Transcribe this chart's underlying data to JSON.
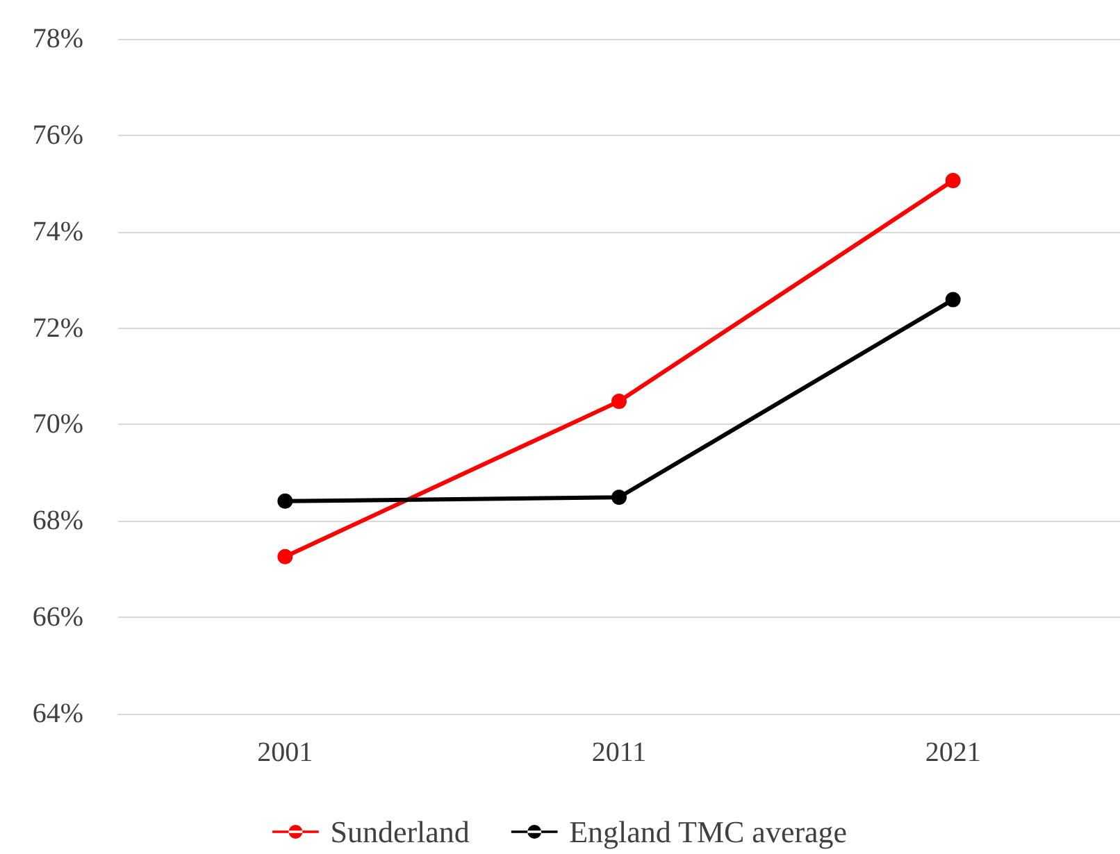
{
  "chart_data": {
    "type": "line",
    "categories": [
      "2001",
      "2011",
      "2021"
    ],
    "series": [
      {
        "name": "Sunderland",
        "color": "#ff0000",
        "values": [
          67.26,
          70.48,
          75.06
        ]
      },
      {
        "name": "England TMC average",
        "color": "#000000",
        "values": [
          68.41,
          68.49,
          72.59
        ]
      }
    ],
    "ylim": [
      64,
      78
    ],
    "yticks": [
      {
        "value": 64,
        "label": "64%"
      },
      {
        "value": 66,
        "label": "66%"
      },
      {
        "value": 68,
        "label": "68%"
      },
      {
        "value": 70,
        "label": "70%"
      },
      {
        "value": 72,
        "label": "72%"
      },
      {
        "value": 74,
        "label": "74%"
      },
      {
        "value": 76,
        "label": "76%"
      },
      {
        "value": 78,
        "label": "78%"
      }
    ],
    "grid": "y",
    "legend": "bottom",
    "marker": "circle",
    "line_style": "solid"
  }
}
